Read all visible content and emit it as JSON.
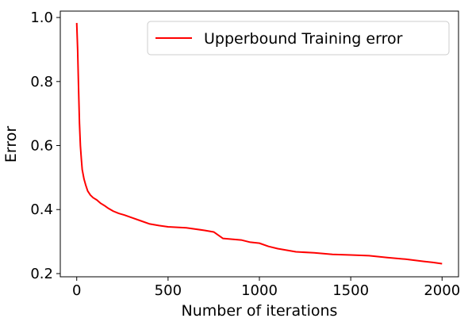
{
  "chart_data": {
    "type": "line",
    "title": "",
    "xlabel": "Number of iterations",
    "ylabel": "Error",
    "xlim": [
      -90,
      2090
    ],
    "ylim": [
      0.19,
      1.02
    ],
    "xticks": [
      0,
      500,
      1000,
      1500,
      2000
    ],
    "yticks": [
      0.2,
      0.4,
      0.6,
      0.8,
      1.0
    ],
    "xtick_labels": [
      "0",
      "500",
      "1000",
      "1500",
      "2000"
    ],
    "ytick_labels": [
      "0.2",
      "0.4",
      "0.6",
      "0.8",
      "1.0"
    ],
    "grid": false,
    "legend": "top-right",
    "series": [
      {
        "name": "Upperbound Training error",
        "color": "#ff0000",
        "x": [
          0,
          5,
          10,
          15,
          20,
          25,
          30,
          40,
          50,
          60,
          75,
          90,
          110,
          130,
          150,
          170,
          200,
          230,
          260,
          300,
          350,
          400,
          450,
          500,
          600,
          700,
          750,
          800,
          900,
          950,
          1000,
          1050,
          1100,
          1200,
          1300,
          1400,
          1500,
          1600,
          1700,
          1800,
          1900,
          1950,
          2000
        ],
        "y": [
          0.983,
          0.9,
          0.78,
          0.67,
          0.6,
          0.56,
          0.525,
          0.495,
          0.475,
          0.458,
          0.445,
          0.437,
          0.43,
          0.42,
          0.413,
          0.405,
          0.395,
          0.388,
          0.383,
          0.375,
          0.365,
          0.355,
          0.35,
          0.346,
          0.343,
          0.335,
          0.33,
          0.31,
          0.305,
          0.298,
          0.295,
          0.285,
          0.278,
          0.268,
          0.265,
          0.26,
          0.258,
          0.256,
          0.25,
          0.245,
          0.238,
          0.235,
          0.231
        ]
      }
    ]
  }
}
